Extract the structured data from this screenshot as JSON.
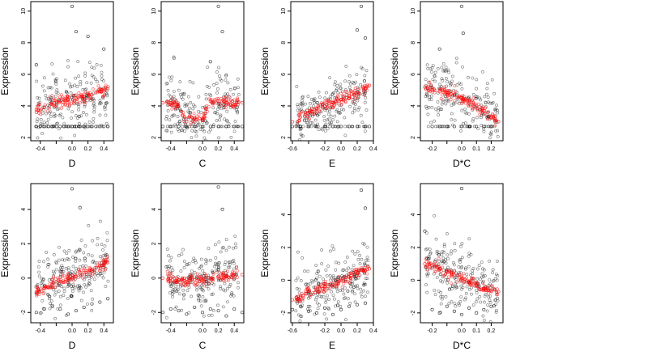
{
  "figure": {
    "description_colors": {
      "observed": "#000000",
      "fitted": "#ff0000",
      "background": "#ffffff"
    }
  },
  "chart_data": [
    {
      "type": "scatter",
      "row": 0,
      "col": 0,
      "xlabel": "D",
      "ylabel": "Expression",
      "xlim": [
        -0.52,
        0.52
      ],
      "ylim": [
        1.8,
        10.6
      ],
      "xticks": [
        -0.4,
        -0.2,
        0.0,
        0.2,
        0.4
      ],
      "xtick_labels": [
        "-0.4",
        "",
        "0.0",
        "0.2",
        "0.4"
      ],
      "yticks": [
        2,
        4,
        6,
        8,
        10
      ],
      "ytick_labels": [
        "2",
        "4",
        "6",
        "8",
        "10"
      ],
      "series": [
        {
          "color": "#000000",
          "x": [
            -0.45,
            -0.4,
            -0.35,
            -0.3,
            -0.25,
            -0.2,
            -0.15,
            -0.1,
            -0.05,
            0.0,
            0.05,
            0.1,
            0.15,
            0.2,
            0.25,
            0.3,
            0.35,
            0.4,
            0.45,
            0.0,
            0.05,
            0.2,
            -0.45,
            0.4
          ],
          "y": [
            2.7,
            2.7,
            2.7,
            2.7,
            2.7,
            2.7,
            2.7,
            2.7,
            2.7,
            2.7,
            2.7,
            2.7,
            2.7,
            2.7,
            2.7,
            2.7,
            2.7,
            2.7,
            2.7,
            10.3,
            8.7,
            8.4,
            6.6,
            7.6
          ]
        },
        {
          "color": "#ff0000",
          "x": [
            -0.45,
            -0.35,
            -0.25,
            -0.15,
            -0.05,
            0.05,
            0.15,
            0.25,
            0.35,
            0.45
          ],
          "y": [
            3.6,
            3.9,
            4.1,
            4.3,
            4.4,
            4.5,
            4.6,
            4.7,
            4.9,
            5.1
          ]
        }
      ]
    },
    {
      "type": "scatter",
      "row": 0,
      "col": 1,
      "xlabel": "C",
      "ylabel": "Expression",
      "xlim": [
        -0.52,
        0.52
      ],
      "ylim": [
        1.8,
        10.6
      ],
      "xticks": [
        -0.4,
        -0.2,
        0.0,
        0.2,
        0.4
      ],
      "xtick_labels": [
        "-0.4",
        "",
        "0.0",
        "0.2",
        "0.4"
      ],
      "yticks": [
        2,
        4,
        6,
        8,
        10
      ],
      "ytick_labels": [
        "2",
        "4",
        "6",
        "8",
        "10"
      ],
      "series": [
        {
          "color": "#000000",
          "x": [
            -0.5,
            -0.4,
            -0.3,
            -0.2,
            -0.1,
            0.0,
            0.1,
            0.2,
            0.3,
            0.4,
            0.5,
            0.2,
            0.25,
            0.1
          ],
          "y": [
            2.7,
            2.7,
            2.7,
            2.7,
            2.7,
            2.7,
            2.7,
            2.7,
            2.7,
            2.7,
            2.7,
            10.3,
            8.7,
            6.8
          ]
        },
        {
          "color": "#ff0000",
          "x": [
            -0.5,
            -0.4,
            -0.3,
            -0.2,
            -0.1,
            0.0,
            0.1,
            0.2,
            0.3,
            0.4,
            0.5
          ],
          "y": [
            4.2,
            4.2,
            4.0,
            3.0,
            3.2,
            3.1,
            4.3,
            4.3,
            4.2,
            4.1,
            4.2
          ]
        }
      ]
    },
    {
      "type": "scatter",
      "row": 0,
      "col": 2,
      "xlabel": "E",
      "ylabel": "Expression",
      "xlim": [
        -0.62,
        0.4
      ],
      "ylim": [
        1.8,
        10.6
      ],
      "xticks": [
        -0.6,
        -0.4,
        -0.2,
        0.0,
        0.2,
        0.4
      ],
      "xtick_labels": [
        "-0.6",
        "",
        "-0.2",
        "0.0",
        "0.2",
        "0.4"
      ],
      "yticks": [
        2,
        4,
        6,
        8,
        10
      ],
      "ytick_labels": [
        "2",
        "4",
        "6",
        "8",
        "10"
      ],
      "series": [
        {
          "color": "#000000",
          "x": [
            -0.6,
            -0.5,
            -0.4,
            -0.3,
            -0.2,
            -0.1,
            0.0,
            0.1,
            0.2,
            0.3,
            0.35,
            0.25,
            0.2,
            0.3
          ],
          "y": [
            2.7,
            2.7,
            2.7,
            2.7,
            2.7,
            2.7,
            2.7,
            2.7,
            2.7,
            2.7,
            2.7,
            10.3,
            8.8,
            8.3
          ]
        },
        {
          "color": "#ff0000",
          "x": [
            -0.6,
            -0.5,
            -0.4,
            -0.3,
            -0.2,
            -0.1,
            0.0,
            0.1,
            0.2,
            0.3,
            0.35
          ],
          "y": [
            3.0,
            3.3,
            3.5,
            3.8,
            4.0,
            4.2,
            4.4,
            4.6,
            4.8,
            5.1,
            5.3
          ]
        }
      ]
    },
    {
      "type": "scatter",
      "row": 0,
      "col": 3,
      "xlabel": "D*C",
      "ylabel": "Expression",
      "xlim": [
        -0.28,
        0.28
      ],
      "ylim": [
        1.8,
        10.6
      ],
      "xticks": [
        -0.2,
        -0.1,
        0.0,
        0.1,
        0.2
      ],
      "xtick_labels": [
        "-0.2",
        "",
        "0.0",
        "0.1",
        "0.2"
      ],
      "yticks": [
        2,
        4,
        6,
        8,
        10
      ],
      "ytick_labels": [
        "2",
        "4",
        "6",
        "8",
        "10"
      ],
      "series": [
        {
          "color": "#000000",
          "x": [
            -0.2,
            -0.15,
            -0.1,
            -0.05,
            0.0,
            0.05,
            0.1,
            0.15,
            0.2,
            0.0,
            0.01,
            -0.15
          ],
          "y": [
            2.7,
            2.7,
            2.7,
            2.7,
            2.7,
            2.7,
            2.7,
            2.7,
            2.7,
            10.3,
            8.6,
            7.6
          ]
        },
        {
          "color": "#ff0000",
          "x": [
            -0.25,
            -0.2,
            -0.15,
            -0.1,
            -0.05,
            0.0,
            0.05,
            0.1,
            0.15,
            0.2,
            0.25
          ],
          "y": [
            5.2,
            5.0,
            4.9,
            4.8,
            4.7,
            4.5,
            4.2,
            4.0,
            3.7,
            3.3,
            3.0
          ]
        }
      ]
    },
    {
      "type": "scatter",
      "row": 1,
      "col": 0,
      "xlabel": "D",
      "ylabel": "Expression",
      "xlim": [
        -0.52,
        0.52
      ],
      "ylim": [
        -2.6,
        5.5
      ],
      "xticks": [
        -0.4,
        -0.2,
        0.0,
        0.2,
        0.4
      ],
      "xtick_labels": [
        "-0.4",
        "",
        "0.0",
        "0.2",
        "0.4"
      ],
      "yticks": [
        -2,
        0,
        2,
        4
      ],
      "ytick_labels": [
        "-2",
        "0",
        "2",
        "4"
      ],
      "series": [
        {
          "color": "#000000",
          "x": [
            -0.45,
            -0.35,
            -0.25,
            -0.15,
            -0.05,
            0.05,
            0.15,
            0.25,
            0.35,
            0.45,
            0.0,
            0.1
          ],
          "y": [
            -2.0,
            -1.8,
            -1.6,
            -1.8,
            -2.1,
            -1.9,
            -1.7,
            -1.5,
            -1.4,
            -1.2,
            5.2,
            4.1
          ]
        },
        {
          "color": "#ff0000",
          "x": [
            -0.45,
            -0.35,
            -0.25,
            -0.15,
            -0.05,
            0.05,
            0.15,
            0.25,
            0.35,
            0.45
          ],
          "y": [
            -0.8,
            -0.6,
            -0.4,
            -0.2,
            0.0,
            0.1,
            0.3,
            0.5,
            0.7,
            0.9
          ]
        }
      ]
    },
    {
      "type": "scatter",
      "row": 1,
      "col": 1,
      "xlabel": "C",
      "ylabel": "Expression",
      "xlim": [
        -0.52,
        0.52
      ],
      "ylim": [
        -2.6,
        5.5
      ],
      "xticks": [
        -0.4,
        -0.2,
        0.0,
        0.2,
        0.4
      ],
      "xtick_labels": [
        "-0.4",
        "",
        "0.0",
        "0.2",
        "0.4"
      ],
      "yticks": [
        -2,
        0,
        2,
        4
      ],
      "ytick_labels": [
        "-2",
        "0",
        "2",
        "4"
      ],
      "series": [
        {
          "color": "#000000",
          "x": [
            -0.5,
            -0.4,
            -0.3,
            -0.2,
            -0.1,
            0.0,
            0.1,
            0.2,
            0.3,
            0.4,
            0.5,
            0.2,
            0.25
          ],
          "y": [
            -2.0,
            -1.8,
            -1.9,
            -2.1,
            -1.7,
            -2.0,
            -1.8,
            -1.9,
            -2.2,
            -1.8,
            -2.0,
            5.3,
            4.0
          ]
        },
        {
          "color": "#ff0000",
          "x": [
            -0.5,
            -0.4,
            -0.3,
            -0.2,
            -0.1,
            0.0,
            0.1,
            0.2,
            0.3,
            0.4,
            0.5
          ],
          "y": [
            0.0,
            0.0,
            -0.1,
            -0.2,
            -0.1,
            -0.1,
            0.0,
            0.1,
            0.1,
            0.2,
            0.2
          ]
        }
      ]
    },
    {
      "type": "scatter",
      "row": 1,
      "col": 2,
      "xlabel": "E",
      "ylabel": "Expression",
      "xlim": [
        -0.62,
        0.4
      ],
      "ylim": [
        -2.6,
        5.9
      ],
      "xticks": [
        -0.6,
        -0.4,
        -0.2,
        0.0,
        0.2,
        0.4
      ],
      "xtick_labels": [
        "-0.6",
        "",
        "-0.2",
        "0.0",
        "0.2",
        "0.4"
      ],
      "yticks": [
        -2,
        0,
        2,
        4
      ],
      "ytick_labels": [
        "-2",
        "0",
        "2",
        "4"
      ],
      "series": [
        {
          "color": "#000000",
          "x": [
            -0.6,
            -0.5,
            -0.4,
            -0.3,
            -0.2,
            -0.1,
            0.0,
            0.1,
            0.2,
            0.3,
            0.25,
            0.3
          ],
          "y": [
            -1.8,
            -1.6,
            -1.9,
            -2.0,
            -1.7,
            -2.1,
            -1.8,
            -1.6,
            -1.5,
            -1.4,
            5.5,
            4.4
          ]
        },
        {
          "color": "#ff0000",
          "x": [
            -0.6,
            -0.5,
            -0.4,
            -0.3,
            -0.2,
            -0.1,
            0.0,
            0.1,
            0.2,
            0.3,
            0.35
          ],
          "y": [
            -1.2,
            -1.0,
            -0.8,
            -0.6,
            -0.4,
            -0.2,
            0.0,
            0.2,
            0.4,
            0.6,
            0.7
          ]
        }
      ]
    },
    {
      "type": "scatter",
      "row": 1,
      "col": 3,
      "xlabel": "D*C",
      "ylabel": "Expression",
      "xlim": [
        -0.28,
        0.28
      ],
      "ylim": [
        -2.6,
        5.9
      ],
      "xticks": [
        -0.2,
        -0.1,
        0.0,
        0.1,
        0.2
      ],
      "xtick_labels": [
        "-0.2",
        "",
        "0.0",
        "0.1",
        "0.2"
      ],
      "yticks": [
        -2,
        0,
        2,
        4
      ],
      "ytick_labels": [
        "-2",
        "0",
        "2",
        "4"
      ],
      "series": [
        {
          "color": "#000000",
          "x": [
            -0.2,
            -0.15,
            -0.1,
            -0.05,
            0.0,
            0.05,
            0.1,
            0.15,
            0.2,
            0.0,
            -0.25
          ],
          "y": [
            -1.8,
            -2.0,
            -1.6,
            -1.9,
            -2.1,
            -1.7,
            -2.0,
            -1.8,
            -1.6,
            5.6,
            3.0
          ]
        },
        {
          "color": "#ff0000",
          "x": [
            -0.25,
            -0.2,
            -0.15,
            -0.1,
            -0.05,
            0.0,
            0.05,
            0.1,
            0.15,
            0.2,
            0.25
          ],
          "y": [
            1.0,
            0.9,
            0.7,
            0.5,
            0.3,
            0.1,
            -0.1,
            -0.3,
            -0.5,
            -0.6,
            -0.7
          ]
        }
      ]
    }
  ]
}
